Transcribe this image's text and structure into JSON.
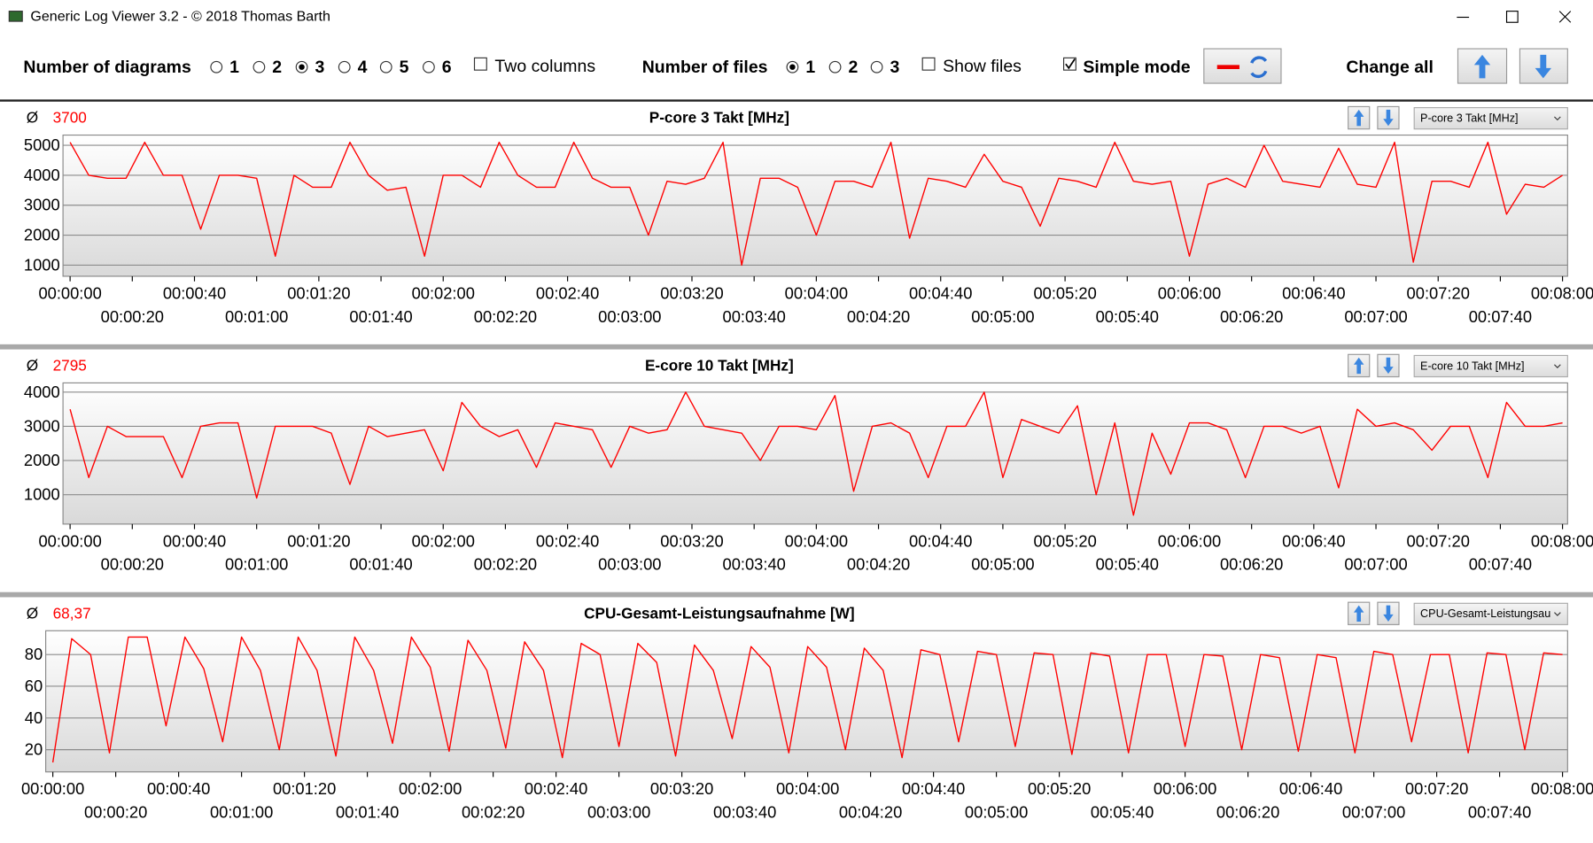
{
  "window": {
    "title": "Generic Log Viewer 3.2 - © 2018 Thomas Barth"
  },
  "toolbar": {
    "diagrams_label": "Number of diagrams",
    "diagram_options": [
      "1",
      "2",
      "3",
      "4",
      "5",
      "6"
    ],
    "two_columns": "Two columns",
    "files_label": "Number of files",
    "file_options": [
      "1",
      "2",
      "3"
    ],
    "show_files": "Show files",
    "simple_mode": "Simple mode",
    "change_all": "Change all"
  },
  "chart_data": [
    {
      "type": "line",
      "title": "P-core 3 Takt [MHz]",
      "average_symbol": "Ø",
      "average": 3700,
      "selector": "P-core 3 Takt [MHz]",
      "color": "#ff0000",
      "grid": true,
      "x": [
        0,
        6,
        12,
        18,
        24,
        30,
        36,
        42,
        48,
        54,
        60,
        66,
        72,
        78,
        84,
        90,
        96,
        102,
        108,
        114,
        120,
        126,
        132,
        138,
        144,
        150,
        156,
        162,
        168,
        174,
        180,
        186,
        192,
        198,
        204,
        210,
        216,
        222,
        228,
        234,
        240,
        246,
        252,
        258,
        264,
        270,
        276,
        282,
        288,
        294,
        300,
        306,
        312,
        318,
        324,
        330,
        336,
        342,
        348,
        354,
        360,
        366,
        372,
        378,
        384,
        390,
        396,
        402,
        408,
        414,
        420,
        426,
        432,
        438,
        444,
        450,
        456,
        462,
        468,
        474,
        480
      ],
      "values": [
        5100,
        4000,
        3900,
        3900,
        5100,
        4000,
        4000,
        2200,
        4000,
        4000,
        3900,
        1300,
        4000,
        3600,
        3600,
        5100,
        4000,
        3500,
        3600,
        1300,
        4000,
        4000,
        3600,
        5100,
        4000,
        3600,
        3600,
        5100,
        3900,
        3600,
        3600,
        2000,
        3800,
        3700,
        3900,
        5100,
        1000,
        3900,
        3900,
        3600,
        2000,
        3800,
        3800,
        3600,
        5100,
        1900,
        3900,
        3800,
        3600,
        4700,
        3800,
        3600,
        2300,
        3900,
        3800,
        3600,
        5100,
        3800,
        3700,
        3800,
        1300,
        3700,
        3900,
        3600,
        5000,
        3800,
        3700,
        3600,
        4900,
        3700,
        3600,
        5100,
        1100,
        3800,
        3800,
        3600,
        5100,
        2700,
        3700,
        3600,
        4000
      ],
      "xlim": [
        0,
        480
      ],
      "ylim": [
        630,
        5340
      ],
      "yticks": [
        1000,
        2000,
        3000,
        4000,
        5000
      ],
      "xticks": [
        {
          "value": 0,
          "label": "00:00:00"
        },
        {
          "value": 20,
          "label": "00:00:20"
        },
        {
          "value": 40,
          "label": "00:00:40"
        },
        {
          "value": 60,
          "label": "00:01:00"
        },
        {
          "value": 80,
          "label": "00:01:20"
        },
        {
          "value": 100,
          "label": "00:01:40"
        },
        {
          "value": 120,
          "label": "00:02:00"
        },
        {
          "value": 140,
          "label": "00:02:20"
        },
        {
          "value": 160,
          "label": "00:02:40"
        },
        {
          "value": 180,
          "label": "00:03:00"
        },
        {
          "value": 200,
          "label": "00:03:20"
        },
        {
          "value": 220,
          "label": "00:03:40"
        },
        {
          "value": 240,
          "label": "00:04:00"
        },
        {
          "value": 260,
          "label": "00:04:20"
        },
        {
          "value": 280,
          "label": "00:04:40"
        },
        {
          "value": 300,
          "label": "00:05:00"
        },
        {
          "value": 320,
          "label": "00:05:20"
        },
        {
          "value": 340,
          "label": "00:05:40"
        },
        {
          "value": 360,
          "label": "00:06:00"
        },
        {
          "value": 380,
          "label": "00:06:20"
        },
        {
          "value": 400,
          "label": "00:06:40"
        },
        {
          "value": 420,
          "label": "00:07:00"
        },
        {
          "value": 440,
          "label": "00:07:20"
        },
        {
          "value": 460,
          "label": "00:07:40"
        },
        {
          "value": 480,
          "label": "00:08:00"
        }
      ]
    },
    {
      "type": "line",
      "title": "E-core 10 Takt [MHz]",
      "average_symbol": "Ø",
      "average": 2795,
      "selector": "E-core 10 Takt [MHz]",
      "color": "#ff0000",
      "grid": true,
      "x": [
        0,
        6,
        12,
        18,
        24,
        30,
        36,
        42,
        48,
        54,
        60,
        66,
        72,
        78,
        84,
        90,
        96,
        102,
        108,
        114,
        120,
        126,
        132,
        138,
        144,
        150,
        156,
        162,
        168,
        174,
        180,
        186,
        192,
        198,
        204,
        210,
        216,
        222,
        228,
        234,
        240,
        246,
        252,
        258,
        264,
        270,
        276,
        282,
        288,
        294,
        300,
        306,
        312,
        318,
        324,
        330,
        336,
        342,
        348,
        354,
        360,
        366,
        372,
        378,
        384,
        390,
        396,
        402,
        408,
        414,
        420,
        426,
        432,
        438,
        444,
        450,
        456,
        462,
        468,
        474,
        480
      ],
      "values": [
        3500,
        1500,
        3000,
        2700,
        2700,
        2700,
        1500,
        3000,
        3100,
        3100,
        900,
        3000,
        3000,
        3000,
        2800,
        1300,
        3000,
        2700,
        2800,
        2900,
        1700,
        3700,
        3000,
        2700,
        2900,
        1800,
        3100,
        3000,
        2900,
        1800,
        3000,
        2800,
        2900,
        4000,
        3000,
        2900,
        2800,
        2000,
        3000,
        3000,
        2900,
        3900,
        1100,
        3000,
        3100,
        2800,
        1500,
        3000,
        3000,
        4000,
        1500,
        3200,
        3000,
        2800,
        3600,
        1000,
        3100,
        400,
        2800,
        1600,
        3100,
        3100,
        2900,
        1500,
        3000,
        3000,
        2800,
        3000,
        1200,
        3500,
        3000,
        3100,
        2900,
        2300,
        3000,
        3000,
        1500,
        3700,
        3000,
        3000,
        3100
      ],
      "xlim": [
        0,
        480
      ],
      "ylim": [
        140,
        4270
      ],
      "yticks": [
        1000,
        2000,
        3000,
        4000
      ],
      "xticks": [
        {
          "value": 0,
          "label": "00:00:00"
        },
        {
          "value": 20,
          "label": "00:00:20"
        },
        {
          "value": 40,
          "label": "00:00:40"
        },
        {
          "value": 60,
          "label": "00:01:00"
        },
        {
          "value": 80,
          "label": "00:01:20"
        },
        {
          "value": 100,
          "label": "00:01:40"
        },
        {
          "value": 120,
          "label": "00:02:00"
        },
        {
          "value": 140,
          "label": "00:02:20"
        },
        {
          "value": 160,
          "label": "00:02:40"
        },
        {
          "value": 180,
          "label": "00:03:00"
        },
        {
          "value": 200,
          "label": "00:03:20"
        },
        {
          "value": 220,
          "label": "00:03:40"
        },
        {
          "value": 240,
          "label": "00:04:00"
        },
        {
          "value": 260,
          "label": "00:04:20"
        },
        {
          "value": 280,
          "label": "00:04:40"
        },
        {
          "value": 300,
          "label": "00:05:00"
        },
        {
          "value": 320,
          "label": "00:05:20"
        },
        {
          "value": 340,
          "label": "00:05:40"
        },
        {
          "value": 360,
          "label": "00:06:00"
        },
        {
          "value": 380,
          "label": "00:06:20"
        },
        {
          "value": 400,
          "label": "00:06:40"
        },
        {
          "value": 420,
          "label": "00:07:00"
        },
        {
          "value": 440,
          "label": "00:07:20"
        },
        {
          "value": 460,
          "label": "00:07:40"
        },
        {
          "value": 480,
          "label": "00:08:00"
        }
      ]
    },
    {
      "type": "line",
      "title": "CPU-Gesamt-Leistungsaufnahme [W]",
      "average_symbol": "Ø",
      "average": {
        "value": 68.37,
        "label": "68,37"
      },
      "selector": "CPU-Gesamt-Leistungsau",
      "color": "#ff0000",
      "grid": true,
      "x": [
        0,
        6,
        12,
        18,
        24,
        30,
        36,
        42,
        48,
        54,
        60,
        66,
        72,
        78,
        84,
        90,
        96,
        102,
        108,
        114,
        120,
        126,
        132,
        138,
        144,
        150,
        156,
        162,
        168,
        174,
        180,
        186,
        192,
        198,
        204,
        210,
        216,
        222,
        228,
        234,
        240,
        246,
        252,
        258,
        264,
        270,
        276,
        282,
        288,
        294,
        300,
        306,
        312,
        318,
        324,
        330,
        336,
        342,
        348,
        354,
        360,
        366,
        372,
        378,
        384,
        390,
        396,
        402,
        408,
        414,
        420,
        426,
        432,
        438,
        444,
        450,
        456,
        462,
        468,
        474,
        480
      ],
      "values": [
        12,
        90,
        80,
        18,
        91,
        91,
        35,
        91,
        71,
        25,
        91,
        70,
        20,
        91,
        70,
        16,
        91,
        70,
        24,
        91,
        72,
        19,
        89,
        70,
        21,
        88,
        70,
        15,
        87,
        80,
        22,
        87,
        75,
        16,
        86,
        70,
        27,
        85,
        72,
        18,
        85,
        72,
        20,
        84,
        70,
        15,
        83,
        80,
        25,
        82,
        80,
        22,
        81,
        80,
        17,
        81,
        79,
        18,
        80,
        80,
        22,
        80,
        79,
        20,
        80,
        78,
        19,
        80,
        78,
        18,
        82,
        80,
        25,
        80,
        80,
        18,
        81,
        80,
        20,
        81,
        80
      ],
      "xlim": [
        0,
        480
      ],
      "ylim": [
        6,
        95
      ],
      "yticks": [
        20,
        40,
        60,
        80
      ],
      "xticks": [
        {
          "value": 0,
          "label": "00:00:00"
        },
        {
          "value": 20,
          "label": "00:00:20"
        },
        {
          "value": 40,
          "label": "00:00:40"
        },
        {
          "value": 60,
          "label": "00:01:00"
        },
        {
          "value": 80,
          "label": "00:01:20"
        },
        {
          "value": 100,
          "label": "00:01:40"
        },
        {
          "value": 120,
          "label": "00:02:00"
        },
        {
          "value": 140,
          "label": "00:02:20"
        },
        {
          "value": 160,
          "label": "00:02:40"
        },
        {
          "value": 180,
          "label": "00:03:00"
        },
        {
          "value": 200,
          "label": "00:03:20"
        },
        {
          "value": 220,
          "label": "00:03:40"
        },
        {
          "value": 240,
          "label": "00:04:00"
        },
        {
          "value": 260,
          "label": "00:04:20"
        },
        {
          "value": 280,
          "label": "00:04:40"
        },
        {
          "value": 300,
          "label": "00:05:00"
        },
        {
          "value": 320,
          "label": "00:05:20"
        },
        {
          "value": 340,
          "label": "00:05:40"
        },
        {
          "value": 360,
          "label": "00:06:00"
        },
        {
          "value": 380,
          "label": "00:06:20"
        },
        {
          "value": 400,
          "label": "00:06:40"
        },
        {
          "value": 420,
          "label": "00:07:00"
        },
        {
          "value": 440,
          "label": "00:07:20"
        },
        {
          "value": 460,
          "label": "00:07:40"
        },
        {
          "value": 480,
          "label": "00:08:00"
        }
      ]
    }
  ]
}
